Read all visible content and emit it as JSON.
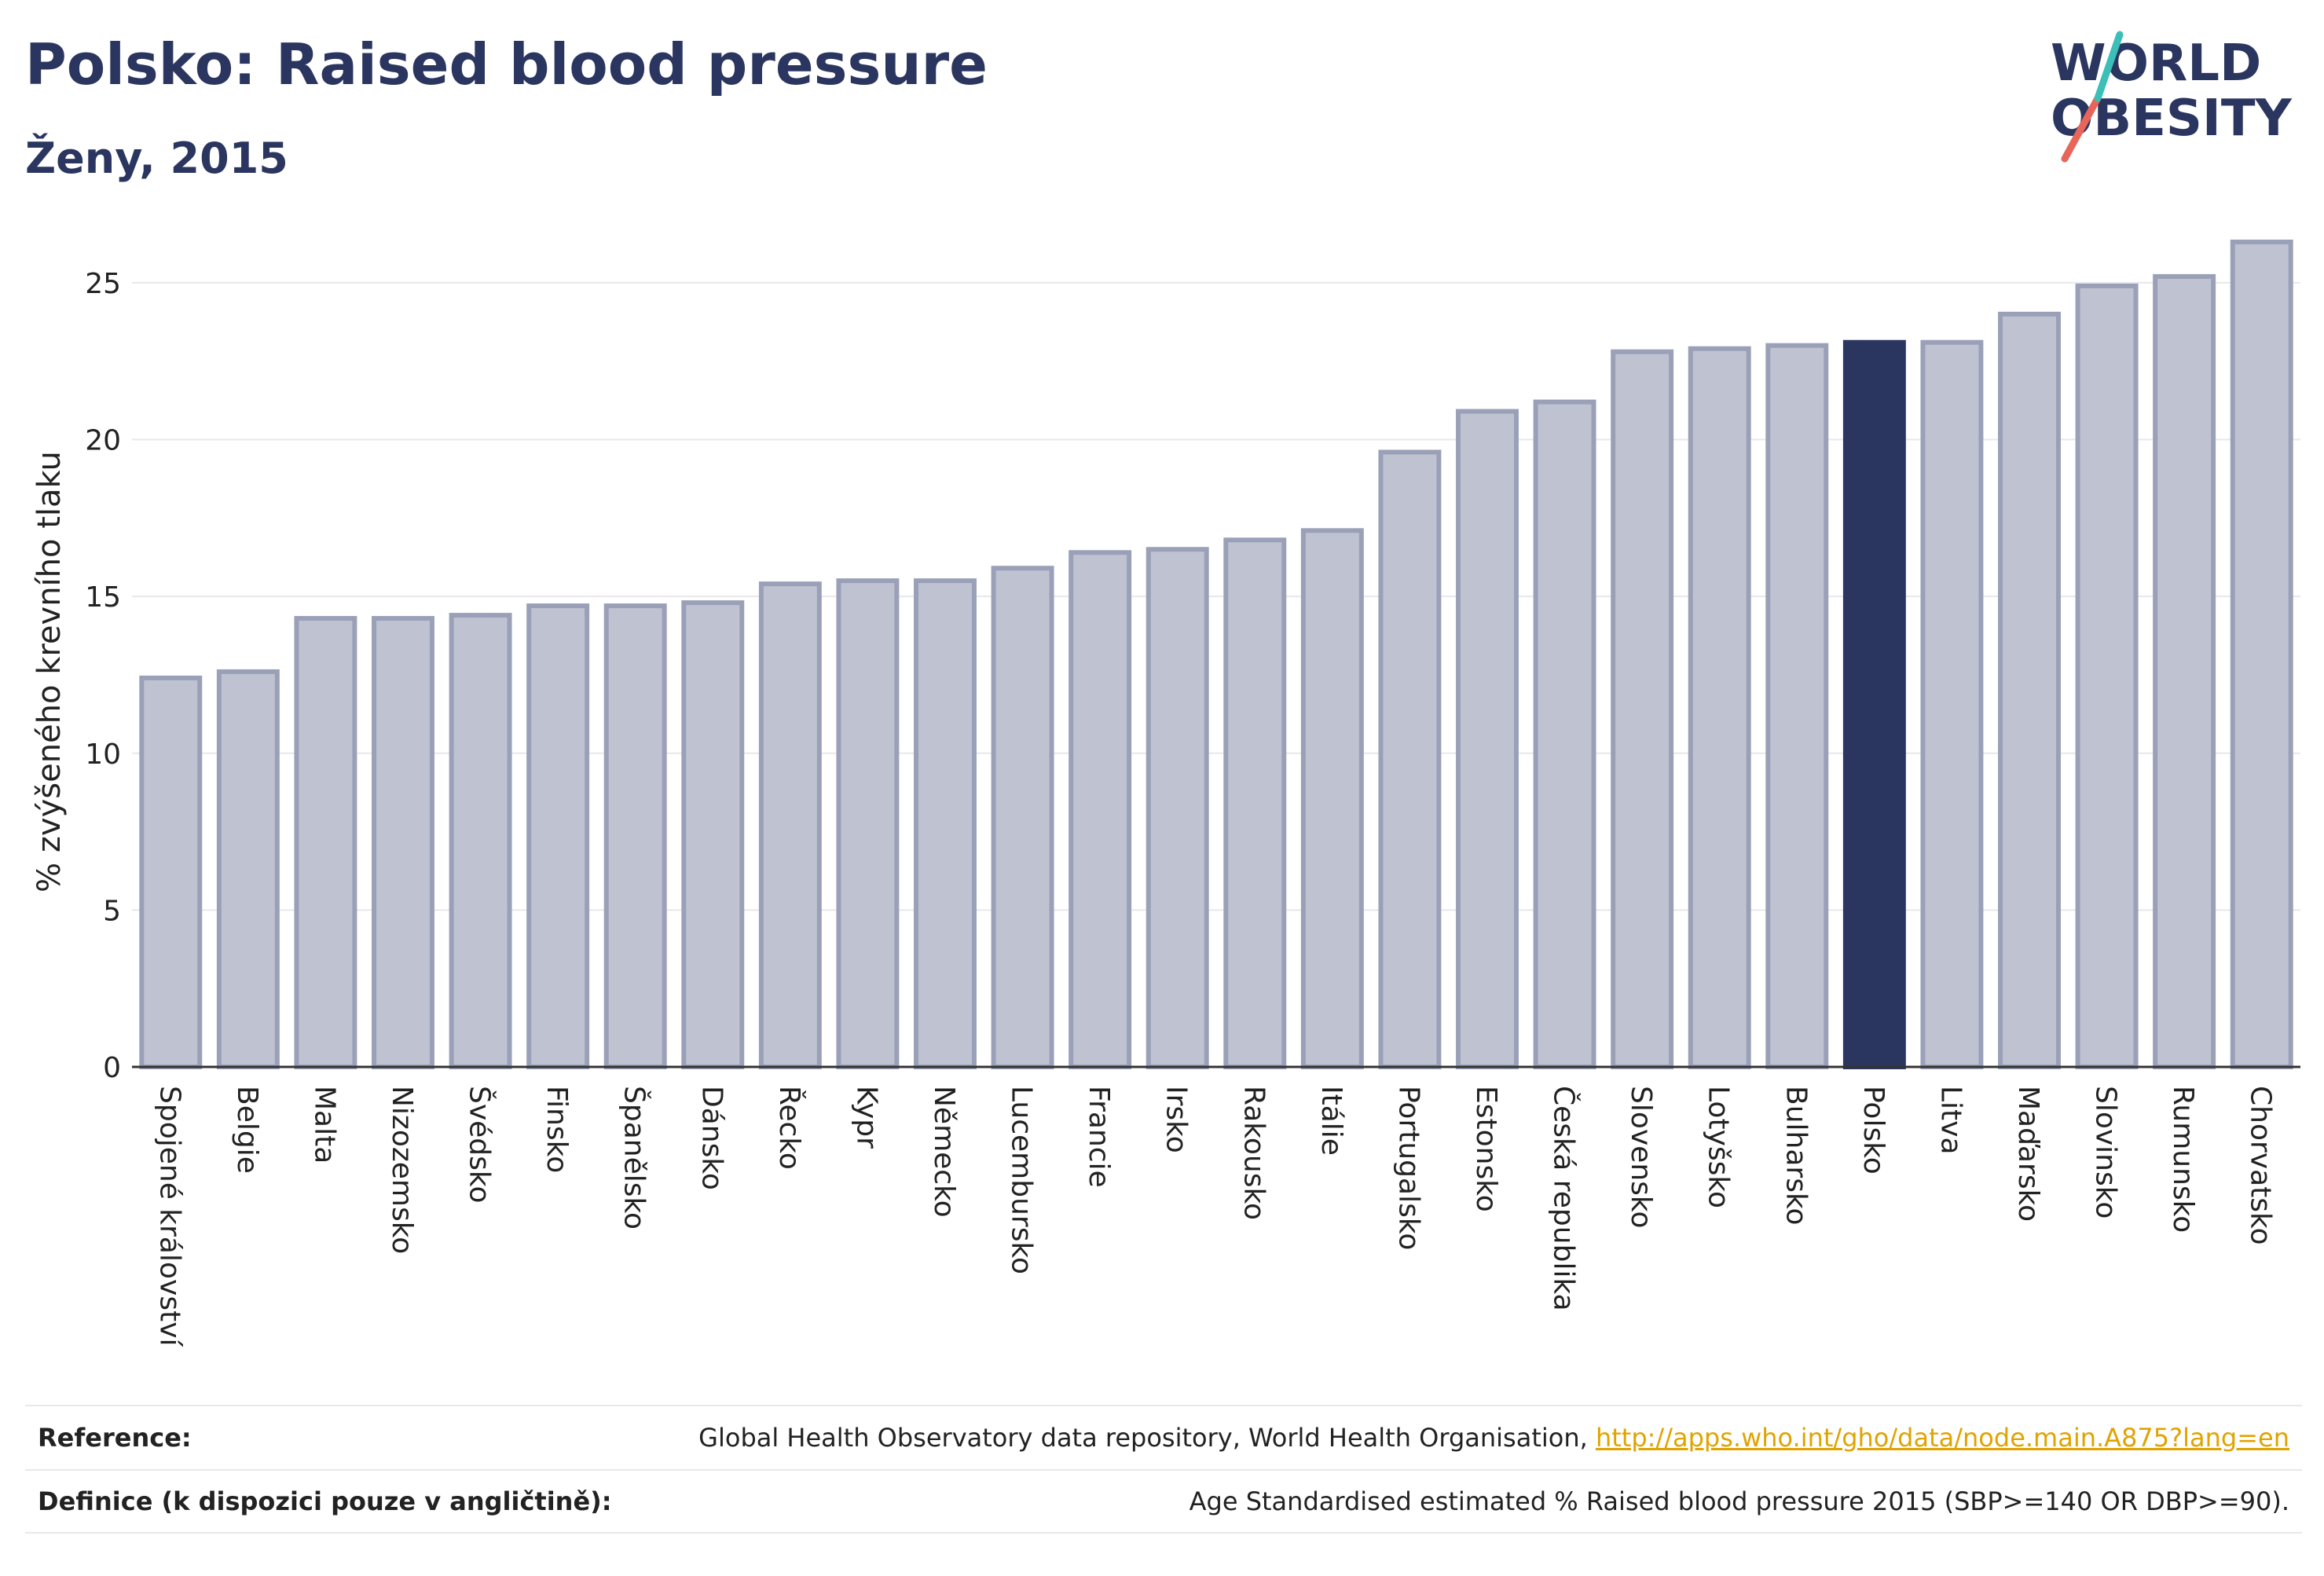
{
  "header": {
    "title": "Polsko: Raised blood pressure",
    "subtitle": "Ženy, 2015"
  },
  "logo": {
    "line1": "WORLD",
    "line2": "OBESITY",
    "colors": {
      "text": "#2b3660",
      "slash_red": "#e8655a",
      "slash_teal": "#3bbfb8"
    }
  },
  "colors": {
    "bar_fill": "#bfc3d1",
    "bar_stroke": "#9aa0b8",
    "highlight": "#2b3660",
    "grid": "#e8e8ec",
    "axis": "#333333"
  },
  "chart_data": {
    "type": "bar",
    "title": "Polsko: Raised blood pressure",
    "subtitle": "Ženy, 2015",
    "xlabel": "",
    "ylabel": "% zvýšeného krevního tlaku",
    "ylim": [
      0,
      26.5
    ],
    "yticks": [
      0,
      5,
      10,
      15,
      20,
      25
    ],
    "grid": true,
    "highlight_category": "Polsko",
    "categories": [
      "Spojené království",
      "Belgie",
      "Malta",
      "Nizozemsko",
      "Švédsko",
      "Finsko",
      "Španělsko",
      "Dánsko",
      "Řecko",
      "Kypr",
      "Německo",
      "Lucembursko",
      "Francie",
      "Irsko",
      "Rakousko",
      "Itálie",
      "Portugalsko",
      "Estonsko",
      "Česká republika",
      "Slovensko",
      "Lotyšsko",
      "Bulharsko",
      "Polsko",
      "Litva",
      "Maďarsko",
      "Slovinsko",
      "Rumunsko",
      "Chorvatsko"
    ],
    "values": [
      12.4,
      12.6,
      14.3,
      14.3,
      14.4,
      14.7,
      14.7,
      14.8,
      15.4,
      15.5,
      15.5,
      15.9,
      16.4,
      16.5,
      16.8,
      17.1,
      19.6,
      20.9,
      21.2,
      22.8,
      22.9,
      23.0,
      23.1,
      23.1,
      24.0,
      24.9,
      25.2,
      26.3
    ]
  },
  "footer": {
    "reference_label": "Reference:",
    "reference_text": "Global Health Observatory data repository, World Health Organisation, ",
    "reference_link": "http://apps.who.int/gho/data/node.main.A875?lang=en",
    "definition_label": "Definice (k dispozici pouze v angličtině):",
    "definition_text": "Age Standardised estimated % Raised blood pressure 2015 (SBP>=140 OR DBP>=90)."
  }
}
